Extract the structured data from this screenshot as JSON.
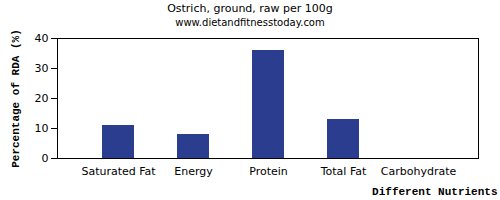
{
  "chart_data": {
    "type": "bar",
    "title": "Ostrich, ground, raw per 100g",
    "subtitle": "www.dietandfitnesstoday.com",
    "x_label": "Different Nutrients",
    "y_label": "Percentage of RDA (%)",
    "categories": [
      "Saturated Fat",
      "Energy",
      "Protein",
      "Total Fat",
      "Carbohydrate"
    ],
    "values": [
      11,
      8,
      36,
      13,
      0
    ],
    "color": "#2a3d8f",
    "ylim": [
      0,
      40
    ],
    "yticks": [
      0,
      10,
      20,
      30,
      40
    ],
    "grid": false
  }
}
